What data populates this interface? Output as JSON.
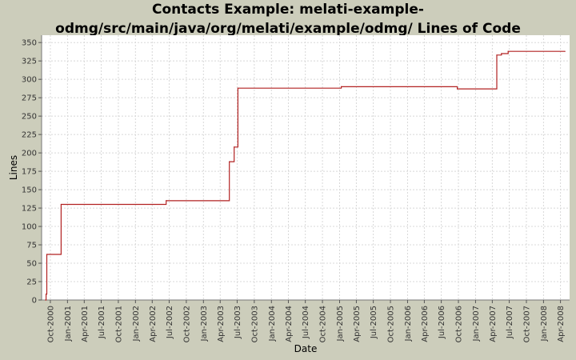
{
  "chart_data": {
    "type": "line",
    "title_lines": [
      "Contacts Example: melati-example-",
      "odmg/src/main/java/org/melati/example/odmg/ Lines of Code"
    ],
    "xlabel": "Date",
    "ylabel": "Lines",
    "ylim": [
      0,
      360
    ],
    "yticks": [
      0,
      25,
      50,
      75,
      100,
      125,
      150,
      175,
      200,
      225,
      250,
      275,
      300,
      325,
      350
    ],
    "xlim": [
      "2000-08-15",
      "2008-05-20"
    ],
    "xticks": [
      {
        "date": "2000-10-01",
        "label": "Oct-2000"
      },
      {
        "date": "2001-01-01",
        "label": "Jan-2001"
      },
      {
        "date": "2001-04-01",
        "label": "Apr-2001"
      },
      {
        "date": "2001-07-01",
        "label": "Jul-2001"
      },
      {
        "date": "2001-10-01",
        "label": "Oct-2001"
      },
      {
        "date": "2002-01-01",
        "label": "Jan-2002"
      },
      {
        "date": "2002-04-01",
        "label": "Apr-2002"
      },
      {
        "date": "2002-07-01",
        "label": "Jul-2002"
      },
      {
        "date": "2002-10-01",
        "label": "Oct-2002"
      },
      {
        "date": "2003-01-01",
        "label": "Jan-2003"
      },
      {
        "date": "2003-04-01",
        "label": "Apr-2003"
      },
      {
        "date": "2003-07-01",
        "label": "Jul-2003"
      },
      {
        "date": "2003-10-01",
        "label": "Oct-2003"
      },
      {
        "date": "2004-01-01",
        "label": "Jan-2004"
      },
      {
        "date": "2004-04-01",
        "label": "Apr-2004"
      },
      {
        "date": "2004-07-01",
        "label": "Jul-2004"
      },
      {
        "date": "2004-10-01",
        "label": "Oct-2004"
      },
      {
        "date": "2005-01-01",
        "label": "Jan-2005"
      },
      {
        "date": "2005-04-01",
        "label": "Apr-2005"
      },
      {
        "date": "2005-07-01",
        "label": "Jul-2005"
      },
      {
        "date": "2005-10-01",
        "label": "Oct-2005"
      },
      {
        "date": "2006-01-01",
        "label": "Jan-2006"
      },
      {
        "date": "2006-04-01",
        "label": "Apr-2006"
      },
      {
        "date": "2006-07-01",
        "label": "Jul-2006"
      },
      {
        "date": "2006-10-01",
        "label": "Oct-2006"
      },
      {
        "date": "2007-01-01",
        "label": "Jan-2007"
      },
      {
        "date": "2007-04-01",
        "label": "Apr-2007"
      },
      {
        "date": "2007-07-01",
        "label": "Jul-2007"
      },
      {
        "date": "2007-10-01",
        "label": "Oct-2007"
      },
      {
        "date": "2008-01-01",
        "label": "Jan-2008"
      },
      {
        "date": "2008-04-01",
        "label": "Apr-2008"
      }
    ],
    "grid": true,
    "legend": "none",
    "series": [
      {
        "color": "#b22222",
        "step": true,
        "points": [
          {
            "x": "2000-09-05",
            "y": 0
          },
          {
            "x": "2000-09-08",
            "y": 8
          },
          {
            "x": "2000-09-12",
            "y": 62
          },
          {
            "x": "2000-11-28",
            "y": 130
          },
          {
            "x": "2002-06-15",
            "y": 135
          },
          {
            "x": "2003-05-20",
            "y": 188
          },
          {
            "x": "2003-06-15",
            "y": 208
          },
          {
            "x": "2003-07-05",
            "y": 288
          },
          {
            "x": "2005-01-10",
            "y": 290
          },
          {
            "x": "2006-09-25",
            "y": 287
          },
          {
            "x": "2007-04-25",
            "y": 333
          },
          {
            "x": "2007-05-20",
            "y": 335
          },
          {
            "x": "2007-06-25",
            "y": 338
          },
          {
            "x": "2008-04-25",
            "y": 338
          }
        ]
      }
    ]
  },
  "colors": {
    "background": "#cccdbb",
    "plot_background": "#ffffff",
    "grid": "#d8d8d8",
    "series": "#b22222"
  }
}
